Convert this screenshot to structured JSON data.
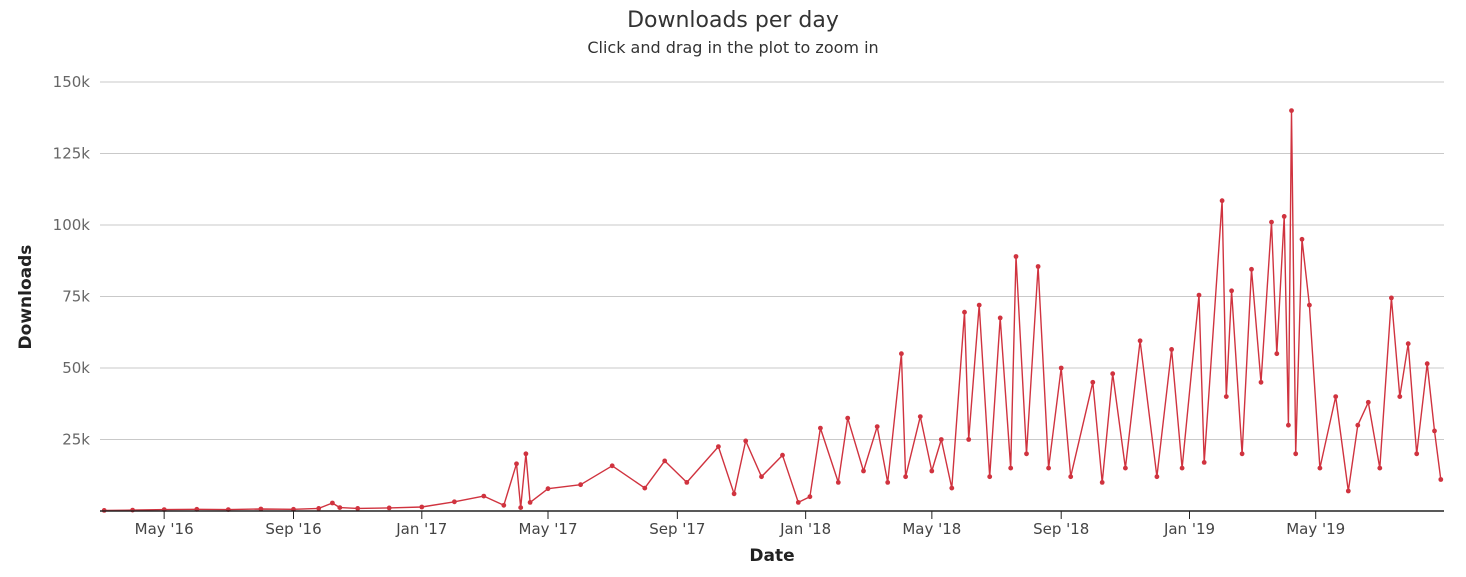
{
  "chart_data": {
    "type": "line",
    "title": "Downloads per day",
    "subtitle": "Click and drag in the plot to zoom in",
    "xlabel": "Date",
    "ylabel": "Downloads",
    "x_start": "2016-03-01",
    "x_end": "2019-08-31",
    "x_ticks": [
      {
        "date": "2016-05-01",
        "label": "May '16"
      },
      {
        "date": "2016-09-01",
        "label": "Sep '16"
      },
      {
        "date": "2017-01-01",
        "label": "Jan '17"
      },
      {
        "date": "2017-05-01",
        "label": "May '17"
      },
      {
        "date": "2017-09-01",
        "label": "Sep '17"
      },
      {
        "date": "2018-01-01",
        "label": "Jan '18"
      },
      {
        "date": "2018-05-01",
        "label": "May '18"
      },
      {
        "date": "2018-09-01",
        "label": "Sep '18"
      },
      {
        "date": "2019-01-01",
        "label": "Jan '19"
      },
      {
        "date": "2019-05-01",
        "label": "May '19"
      }
    ],
    "ylim": [
      0,
      150000
    ],
    "y_ticks": [
      {
        "value": 25000,
        "label": "25k"
      },
      {
        "value": 50000,
        "label": "50k"
      },
      {
        "value": 75000,
        "label": "75k"
      },
      {
        "value": 100000,
        "label": "100k"
      },
      {
        "value": 125000,
        "label": "125k"
      },
      {
        "value": 150000,
        "label": "150k"
      }
    ],
    "grid": true,
    "series": [
      {
        "name": "Downloads",
        "color": "#d0333f",
        "points": [
          [
            "2016-03-05",
            200
          ],
          [
            "2016-04-01",
            300
          ],
          [
            "2016-05-01",
            500
          ],
          [
            "2016-06-01",
            600
          ],
          [
            "2016-07-01",
            500
          ],
          [
            "2016-08-01",
            700
          ],
          [
            "2016-09-01",
            600
          ],
          [
            "2016-09-25",
            900
          ],
          [
            "2016-10-08",
            2800
          ],
          [
            "2016-10-15",
            1200
          ],
          [
            "2016-11-01",
            900
          ],
          [
            "2016-12-01",
            1100
          ],
          [
            "2017-01-01",
            1400
          ],
          [
            "2017-02-01",
            3200
          ],
          [
            "2017-03-01",
            5200
          ],
          [
            "2017-03-20",
            2000
          ],
          [
            "2017-04-01",
            16500
          ],
          [
            "2017-04-05",
            1200
          ],
          [
            "2017-04-10",
            20000
          ],
          [
            "2017-04-14",
            3000
          ],
          [
            "2017-05-01",
            7800
          ],
          [
            "2017-06-01",
            9200
          ],
          [
            "2017-07-01",
            15800
          ],
          [
            "2017-08-01",
            8000
          ],
          [
            "2017-08-20",
            17500
          ],
          [
            "2017-09-10",
            10000
          ],
          [
            "2017-10-10",
            22500
          ],
          [
            "2017-10-25",
            6000
          ],
          [
            "2017-11-05",
            24500
          ],
          [
            "2017-11-20",
            12000
          ],
          [
            "2017-12-10",
            19500
          ],
          [
            "2017-12-25",
            3000
          ],
          [
            "2018-01-05",
            5000
          ],
          [
            "2018-01-15",
            29000
          ],
          [
            "2018-02-01",
            10000
          ],
          [
            "2018-02-10",
            32500
          ],
          [
            "2018-02-25",
            14000
          ],
          [
            "2018-03-10",
            29500
          ],
          [
            "2018-03-20",
            10000
          ],
          [
            "2018-04-02",
            55000
          ],
          [
            "2018-04-06",
            12000
          ],
          [
            "2018-04-20",
            33000
          ],
          [
            "2018-05-01",
            14000
          ],
          [
            "2018-05-10",
            25000
          ],
          [
            "2018-05-20",
            8000
          ],
          [
            "2018-06-01",
            69500
          ],
          [
            "2018-06-05",
            25000
          ],
          [
            "2018-06-15",
            72000
          ],
          [
            "2018-06-25",
            12000
          ],
          [
            "2018-07-05",
            67500
          ],
          [
            "2018-07-15",
            15000
          ],
          [
            "2018-07-20",
            89000
          ],
          [
            "2018-07-30",
            20000
          ],
          [
            "2018-08-10",
            85500
          ],
          [
            "2018-08-20",
            15000
          ],
          [
            "2018-09-01",
            50000
          ],
          [
            "2018-09-10",
            12000
          ],
          [
            "2018-10-01",
            45000
          ],
          [
            "2018-10-10",
            10000
          ],
          [
            "2018-10-20",
            48000
          ],
          [
            "2018-11-01",
            15000
          ],
          [
            "2018-11-15",
            59500
          ],
          [
            "2018-12-01",
            12000
          ],
          [
            "2018-12-15",
            56500
          ],
          [
            "2018-12-25",
            15000
          ],
          [
            "2019-01-10",
            75500
          ],
          [
            "2019-01-15",
            17000
          ],
          [
            "2019-02-01",
            108500
          ],
          [
            "2019-02-05",
            40000
          ],
          [
            "2019-02-10",
            77000
          ],
          [
            "2019-02-20",
            20000
          ],
          [
            "2019-03-01",
            84500
          ],
          [
            "2019-03-10",
            45000
          ],
          [
            "2019-03-20",
            101000
          ],
          [
            "2019-03-25",
            55000
          ],
          [
            "2019-04-01",
            103000
          ],
          [
            "2019-04-05",
            30000
          ],
          [
            "2019-04-08",
            140000
          ],
          [
            "2019-04-12",
            20000
          ],
          [
            "2019-04-18",
            95000
          ],
          [
            "2019-04-25",
            72000
          ],
          [
            "2019-05-05",
            15000
          ],
          [
            "2019-05-20",
            40000
          ],
          [
            "2019-06-01",
            7000
          ],
          [
            "2019-06-10",
            30000
          ],
          [
            "2019-06-20",
            38000
          ],
          [
            "2019-07-01",
            15000
          ],
          [
            "2019-07-12",
            74500
          ],
          [
            "2019-07-20",
            40000
          ],
          [
            "2019-07-28",
            58500
          ],
          [
            "2019-08-05",
            20000
          ],
          [
            "2019-08-15",
            51500
          ],
          [
            "2019-08-22",
            28000
          ],
          [
            "2019-08-28",
            11000
          ]
        ]
      }
    ]
  }
}
